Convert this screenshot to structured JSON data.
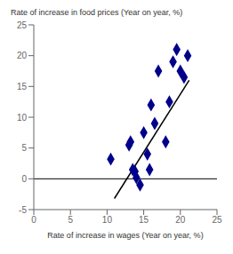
{
  "chart_data": {
    "type": "scatter",
    "xlabel": "Rate of increase in wages (Year on year, %)",
    "ylabel": "Rate of increase in food prices (Year on year, %)",
    "series": [
      {
        "type": "scatter",
        "color": "#00008B",
        "marker": "diamond",
        "x": [
          10.5,
          13.0,
          13.2,
          13.5,
          13.8,
          14.0,
          14.5,
          15.0,
          15.5,
          15.8,
          16.0,
          16.5,
          17.0,
          18.0,
          18.5,
          19.0,
          19.5,
          20.0,
          20.5,
          21.0
        ],
        "values": [
          3.2,
          5.5,
          6.0,
          1.5,
          1.2,
          0.2,
          -1.0,
          7.5,
          4.0,
          1.5,
          12.0,
          9.0,
          17.5,
          6.0,
          12.5,
          19.0,
          21.0,
          17.5,
          16.5,
          20.0
        ]
      },
      {
        "type": "line",
        "color": "#000000",
        "x": [
          11.0,
          21.2
        ],
        "values": [
          -3.2,
          16.0
        ]
      }
    ],
    "reference_lines": [
      {
        "y": 0,
        "color": "#000000"
      }
    ],
    "xlim": [
      0,
      25
    ],
    "ylim": [
      -5,
      25
    ],
    "xticks": [
      0,
      5,
      10,
      15,
      20,
      25
    ],
    "yticks": [
      -5,
      0,
      5,
      10,
      15,
      20,
      25
    ],
    "grid": false
  }
}
